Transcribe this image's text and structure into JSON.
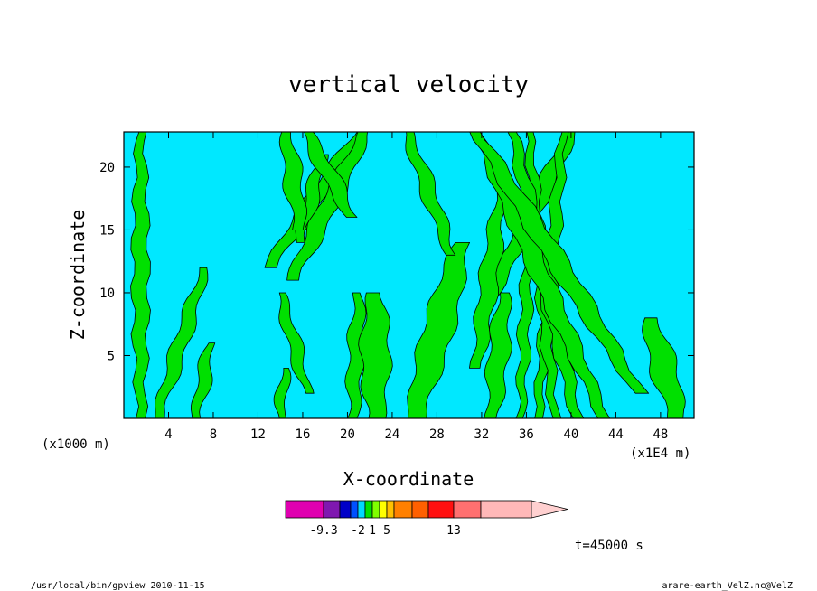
{
  "chart_data": {
    "type": "heatmap",
    "title": "vertical velocity",
    "xlabel": "X-coordinate",
    "ylabel": "Z-coordinate",
    "x_unit_left": "(x1000 m)",
    "x_unit_right": "(x1E4 m)",
    "xlim": [
      0,
      51
    ],
    "ylim": [
      0,
      22.8
    ],
    "x_ticks": [
      4,
      8,
      12,
      16,
      20,
      24,
      28,
      32,
      36,
      40,
      44,
      48
    ],
    "x_tick_labels": [
      "4",
      "8",
      "12",
      "16",
      "20",
      "24",
      "28",
      "32",
      "36",
      "40",
      "44",
      "48"
    ],
    "y_ticks": [
      5,
      10,
      15,
      20
    ],
    "y_tick_labels": [
      "5",
      "10",
      "15",
      "20"
    ],
    "time_label": "t=45000 s",
    "colorbar": {
      "colors": [
        "#e000b0",
        "#7f18b0",
        "#0000c8",
        "#0050ff",
        "#00d8ff",
        "#00e000",
        "#80ff00",
        "#ffff00",
        "#ffc000",
        "#ff8000",
        "#ff6000",
        "#ff1010",
        "#ff7070",
        "#ffb8b8",
        "#ffd0d0"
      ],
      "labels": [
        "-9.3",
        "-2",
        "1",
        "5",
        "13"
      ],
      "label_index": [
        1,
        4,
        6,
        8,
        12
      ]
    },
    "colors": {
      "negative": "#00e8ff",
      "positive": "#00e000",
      "contour": "#000000"
    },
    "ridges": [
      {
        "x0": 1.5,
        "k": 0.0,
        "w": 0.7,
        "h0": 0,
        "h1": 23
      },
      {
        "x0": 4.0,
        "k": 0.75,
        "w": 0.9,
        "h0": 12,
        "h1": 23
      },
      {
        "x0": 3.0,
        "k": 0.35,
        "w": 0.7,
        "h0": 0,
        "h1": 12
      },
      {
        "x0": 9.0,
        "k": 0.55,
        "w": 0.9,
        "h0": 11,
        "h1": 23
      },
      {
        "x0": 11.5,
        "k": 0.3,
        "w": 0.6,
        "h0": 14,
        "h1": 21
      },
      {
        "x0": 18.0,
        "k": -0.15,
        "w": 0.8,
        "h0": 15,
        "h1": 23
      },
      {
        "x0": 20.5,
        "k": 0.05,
        "w": 0.7,
        "h0": 0,
        "h1": 10
      },
      {
        "x0": 22.5,
        "k": 0.0,
        "w": 1.3,
        "h0": 0,
        "h1": 10
      },
      {
        "x0": 26.0,
        "k": 0.3,
        "w": 1.4,
        "h0": 0,
        "h1": 14
      },
      {
        "x0": 27.5,
        "k": 0.55,
        "w": 0.9,
        "h0": 9,
        "h1": 23
      },
      {
        "x0": 31.0,
        "k": 0.15,
        "w": 0.8,
        "h0": 4,
        "h1": 18
      },
      {
        "x0": 33.0,
        "k": 0.1,
        "w": 0.9,
        "h0": 0,
        "h1": 10
      },
      {
        "x0": 35.5,
        "k": 0.05,
        "w": 0.5,
        "h0": 0,
        "h1": 16
      },
      {
        "x0": 37.0,
        "k": 0.1,
        "w": 0.6,
        "h0": 0,
        "h1": 23
      },
      {
        "x0": 38.5,
        "k": -0.1,
        "w": 0.6,
        "h0": 0,
        "h1": 23
      },
      {
        "x0": 40.5,
        "k": -0.25,
        "w": 0.8,
        "h0": 0,
        "h1": 23
      },
      {
        "x0": 43.0,
        "k": -0.5,
        "w": 0.9,
        "h0": 0,
        "h1": 23
      },
      {
        "x0": 47.5,
        "k": -0.7,
        "w": 1.0,
        "h0": 2,
        "h1": 23
      },
      {
        "x0": 49.5,
        "k": -0.3,
        "w": 1.2,
        "h0": 0,
        "h1": 8
      },
      {
        "x0": 34.5,
        "k": -0.4,
        "w": 0.7,
        "h0": 13,
        "h1": 23
      },
      {
        "x0": 30.0,
        "k": -0.6,
        "w": 0.8,
        "h0": 16,
        "h1": 23
      },
      {
        "x0": 14.0,
        "k": 0.1,
        "w": 0.5,
        "h0": 0,
        "h1": 4
      },
      {
        "x0": 6.5,
        "k": 0.2,
        "w": 0.6,
        "h0": 0,
        "h1": 6
      },
      {
        "x0": 17.0,
        "k": -0.3,
        "w": 0.6,
        "h0": 2,
        "h1": 10
      }
    ]
  },
  "footer": {
    "left": "/usr/local/bin/gpview  2010-11-15",
    "right": "arare-earth_VelZ.nc@VelZ"
  }
}
